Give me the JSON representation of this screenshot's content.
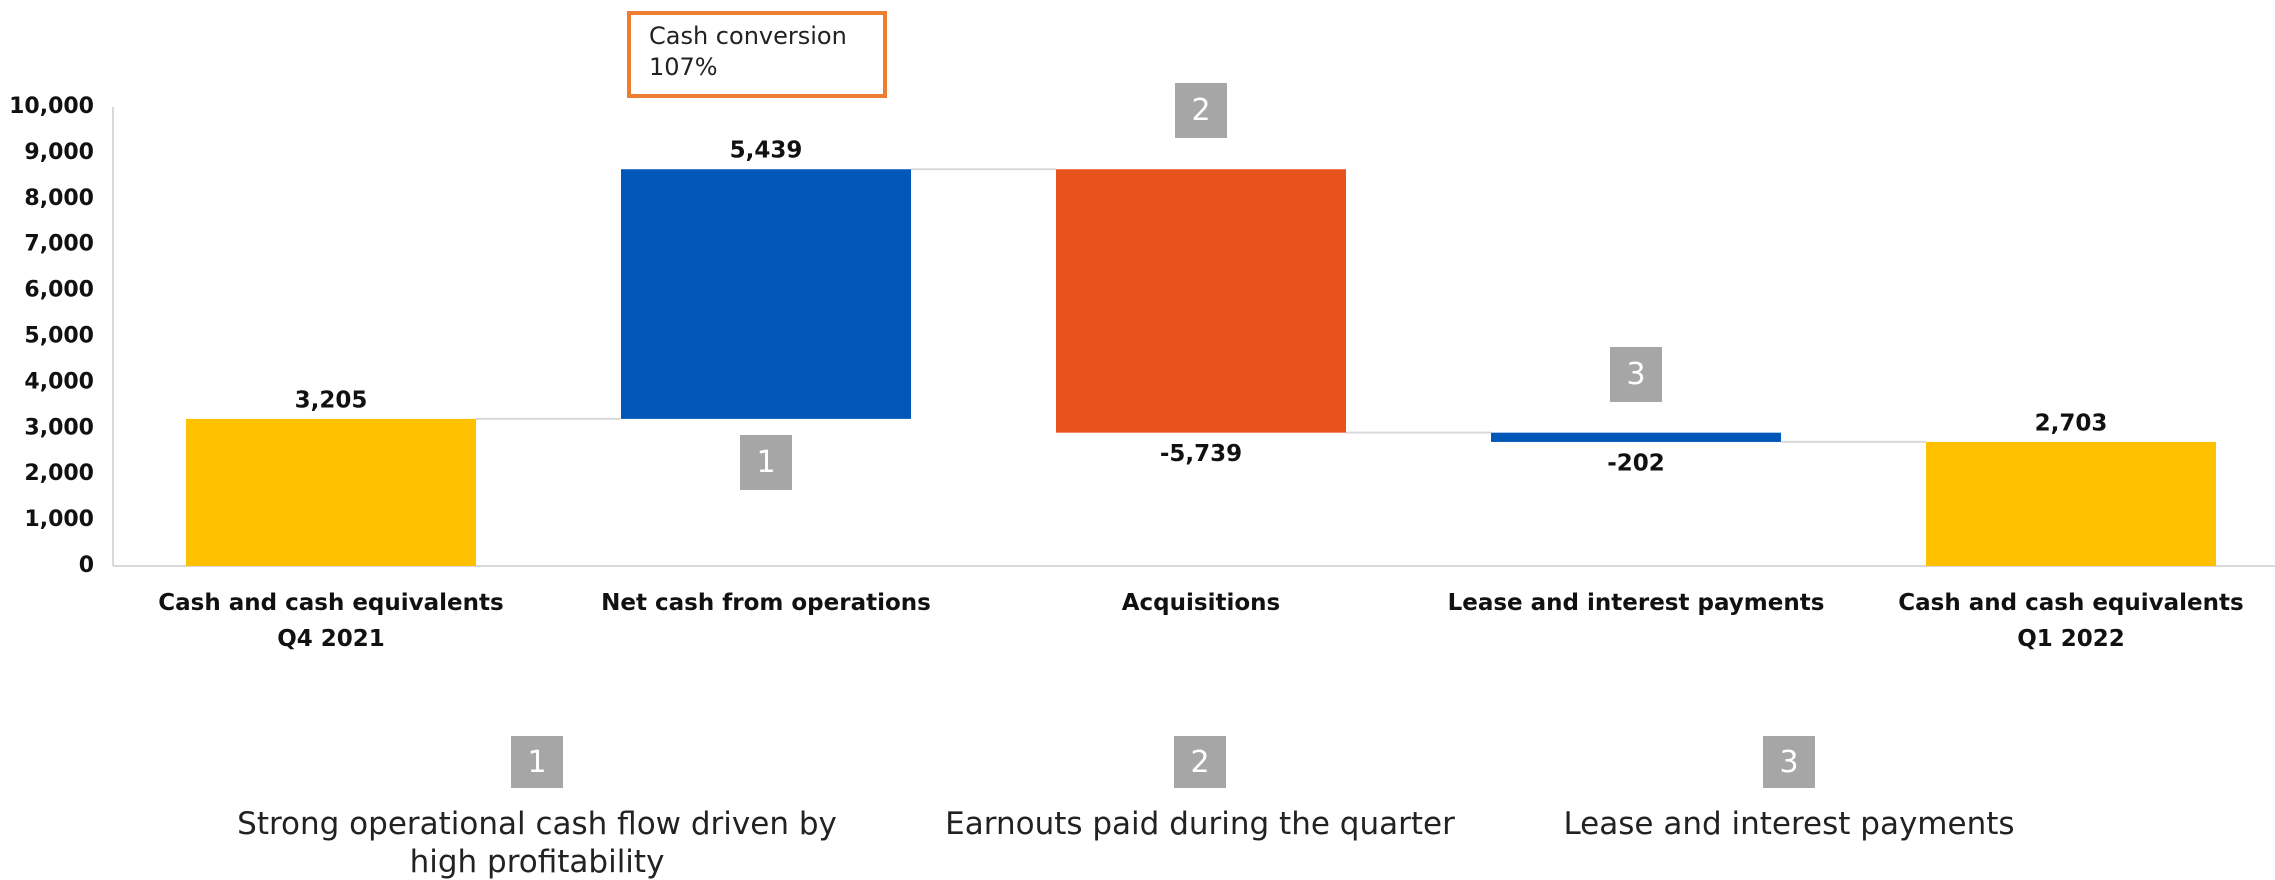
{
  "chart_data": {
    "type": "waterfall",
    "categories": [
      "Cash and cash equivalents Q4 2021",
      "Net cash from operations",
      "Acquisitions",
      "Lease and interest payments",
      "Cash and cash equivalents Q1 2022"
    ],
    "values": [
      3205,
      5439,
      -5739,
      -202,
      2703
    ],
    "value_labels": [
      "3,205",
      "5,439",
      "-5,739",
      "-202",
      "2,703"
    ],
    "measure": [
      "total",
      "relative",
      "relative",
      "relative",
      "total"
    ],
    "colors": [
      "#FFC000",
      "#0057B8",
      "#E8521C",
      "#0057B8",
      "#FFC000"
    ],
    "ylim": [
      0,
      10000
    ],
    "yticks": [
      0,
      {
        "value": 1000,
        "label": "1,000"
      },
      {
        "value": 2000,
        "label": "2,000"
      },
      {
        "value": 3000,
        "label": "3,000"
      },
      {
        "value": 4000,
        "label": "4,000"
      },
      {
        "value": 5000,
        "label": "5,000"
      },
      {
        "value": 6000,
        "label": "6,000"
      },
      {
        "value": 7000,
        "label": "7,000"
      },
      {
        "value": 8000,
        "label": "8,000"
      },
      {
        "value": 9000,
        "label": "9,000"
      },
      {
        "value": 10000,
        "label": "10,000"
      }
    ],
    "callout": "Cash conversion 107%",
    "badges": [
      "1",
      "2",
      "3"
    ],
    "notes": [
      "Strong operational cash flow driven by high profitability",
      "Earnouts paid during the quarter",
      "Lease and interest payments"
    ]
  }
}
